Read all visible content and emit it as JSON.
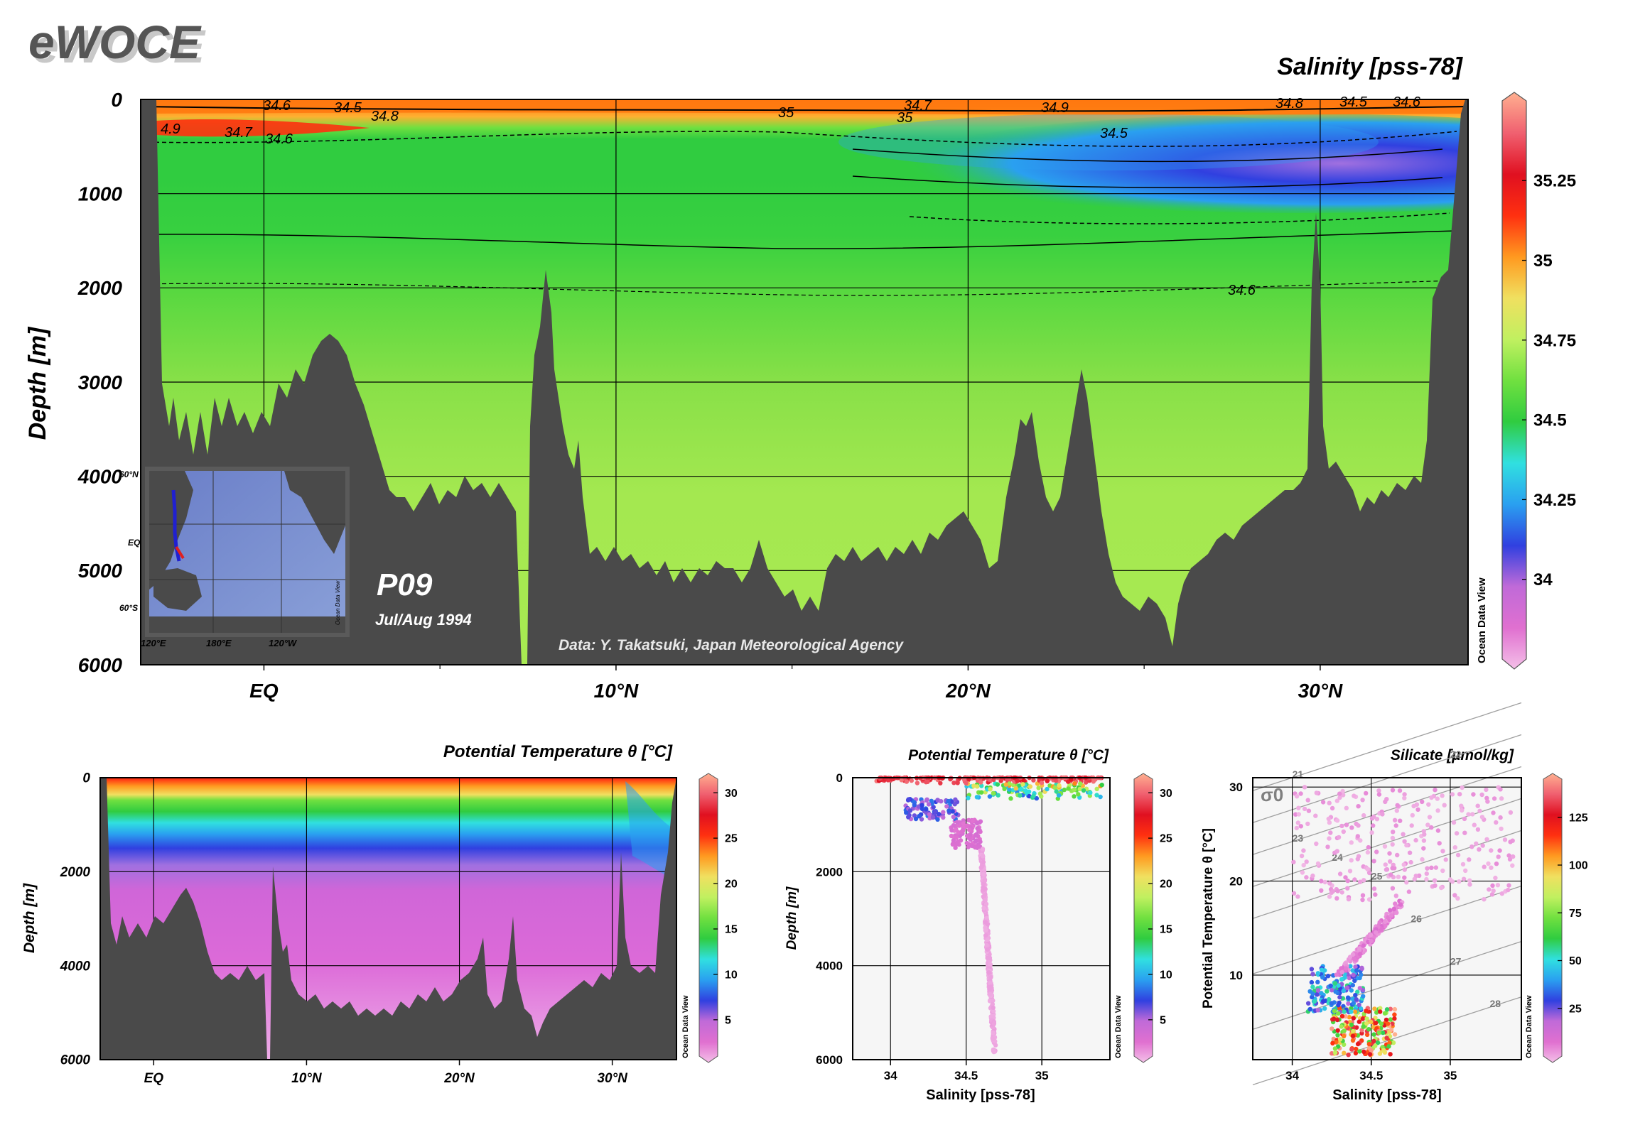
{
  "logo": {
    "text": "eWOCE"
  },
  "colors": {
    "land": "#4a4a4a",
    "background": "#ffffff",
    "panel_bg": "#f6f6f6",
    "colormap": [
      "#f4c0e8",
      "#e070d0",
      "#c06ad8",
      "#3040e0",
      "#2aa0f0",
      "#30e0e0",
      "#30cc40",
      "#70e040",
      "#c0f060",
      "#f0e060",
      "#ff9a20",
      "#ff3010",
      "#e01020",
      "#f06070",
      "#ffb090"
    ]
  },
  "chart_data": [
    {
      "id": "main-section",
      "type": "heatmap",
      "title": "Salinity [pss-78]",
      "ylabel": "Depth [m]",
      "xlabel": "",
      "x_ticks": [
        "EQ",
        "10°N",
        "20°N",
        "30°N"
      ],
      "x_tick_values": [
        0,
        10,
        20,
        30
      ],
      "xlim": [
        -3.5,
        34.2
      ],
      "y_ticks": [
        "0",
        "1000",
        "2000",
        "3000",
        "4000",
        "5000",
        "6000"
      ],
      "y_tick_values": [
        0,
        1000,
        2000,
        3000,
        4000,
        5000,
        6000
      ],
      "ylim": [
        0,
        6000
      ],
      "colorbar": {
        "ticks": [
          "34",
          "34.25",
          "34.5",
          "34.75",
          "35",
          "35.25"
        ],
        "tick_values": [
          34,
          34.25,
          34.5,
          34.75,
          35,
          35.25
        ],
        "range": [
          33.75,
          35.5
        ]
      },
      "contour_labels": [
        "34.6",
        "34.5",
        "34.8",
        "35",
        "34.7",
        "34.9",
        "34.8",
        "34.5",
        "34.6",
        "4.9",
        "34.7",
        "34.6",
        "35",
        "34.5",
        "34.6"
      ],
      "cruise": "P09",
      "date": "Jul/Aug 1994",
      "credit": "Data: Y. Takatsuki, Japan Meteorological Agency",
      "watermark": "Ocean Data View",
      "inset_map": {
        "lat_labels": [
          "60°N",
          "EQ",
          "60°S"
        ],
        "lon_labels": [
          "120°E",
          "180°E",
          "120°W"
        ],
        "watermark": "Ocean Data View"
      }
    },
    {
      "id": "temp-section",
      "type": "heatmap",
      "title": "Potential Temperature θ [°C]",
      "ylabel": "Depth [m]",
      "xlabel": "",
      "x_ticks": [
        "EQ",
        "10°N",
        "20°N",
        "30°N"
      ],
      "x_tick_values": [
        0,
        10,
        20,
        30
      ],
      "xlim": [
        -3.5,
        34.2
      ],
      "y_ticks": [
        "0",
        "2000",
        "4000",
        "6000"
      ],
      "y_tick_values": [
        0,
        2000,
        4000,
        6000
      ],
      "ylim": [
        0,
        6000
      ],
      "colorbar": {
        "ticks": [
          "5",
          "10",
          "15",
          "20",
          "25",
          "30"
        ],
        "tick_values": [
          5,
          10,
          15,
          20,
          25,
          30
        ],
        "range": [
          1,
          31.5
        ]
      },
      "watermark": "Ocean Data View"
    },
    {
      "id": "salinity-profile",
      "type": "scatter",
      "title": "Potential Temperature θ [°C]",
      "xlabel": "Salinity [pss-78]",
      "ylabel": "Depth [m]",
      "x_ticks": [
        "34",
        "34.5",
        "35"
      ],
      "x_tick_values": [
        34,
        34.5,
        35
      ],
      "xlim": [
        33.75,
        35.45
      ],
      "y_ticks": [
        "0",
        "2000",
        "4000",
        "6000"
      ],
      "y_tick_values": [
        0,
        2000,
        4000,
        6000
      ],
      "ylim": [
        0,
        6000
      ],
      "colorbar": {
        "ticks": [
          "5",
          "10",
          "15",
          "20",
          "25",
          "30"
        ],
        "tick_values": [
          5,
          10,
          15,
          20,
          25,
          30
        ],
        "range": [
          1,
          31.5
        ]
      },
      "watermark": "Ocean Data View"
    },
    {
      "id": "ts-diagram",
      "type": "scatter",
      "title": "Silicate [µmol/kg]",
      "xlabel": "Salinity [pss-78]",
      "ylabel": "Potential Temperature θ [°C]",
      "x_ticks": [
        "34",
        "34.5",
        "35"
      ],
      "x_tick_values": [
        34,
        34.5,
        35
      ],
      "xlim": [
        33.75,
        35.45
      ],
      "y_ticks": [
        "10",
        "20",
        "30"
      ],
      "y_tick_values": [
        10,
        20,
        30
      ],
      "ylim": [
        1,
        31
      ],
      "sigma_label": "σ0",
      "isopycnal_labels": [
        "21",
        "22",
        "23",
        "24",
        "25",
        "26",
        "27",
        "28"
      ],
      "colorbar": {
        "ticks": [
          "25",
          "50",
          "75",
          "100",
          "125"
        ],
        "tick_values": [
          25,
          50,
          75,
          100,
          125
        ],
        "range": [
          0,
          145
        ]
      },
      "watermark": "Ocean Data View"
    }
  ]
}
